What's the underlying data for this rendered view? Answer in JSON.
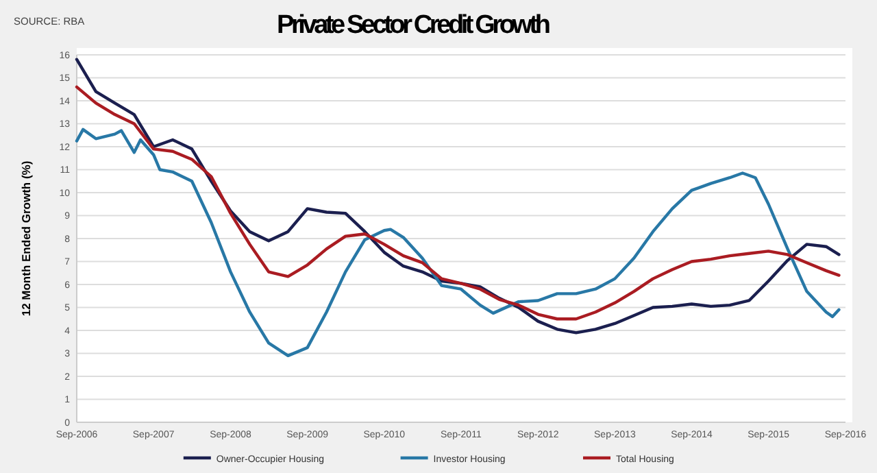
{
  "chart_data": {
    "type": "line",
    "title": "Private Sector Credit Growth",
    "ylabel": "12 Month Ended Growth (%)",
    "annotations": [
      "SOURCE: RBA"
    ],
    "xlim": [
      "2006-09",
      "2016-09"
    ],
    "xticks": [
      {
        "value": "2006-09",
        "label": "Sep-2006"
      },
      {
        "value": "2007-09",
        "label": "Sep-2007"
      },
      {
        "value": "2008-09",
        "label": "Sep-2008"
      },
      {
        "value": "2009-09",
        "label": "Sep-2009"
      },
      {
        "value": "2010-09",
        "label": "Sep-2010"
      },
      {
        "value": "2011-09",
        "label": "Sep-2011"
      },
      {
        "value": "2012-09",
        "label": "Sep-2012"
      },
      {
        "value": "2013-09",
        "label": "Sep-2013"
      },
      {
        "value": "2014-09",
        "label": "Sep-2014"
      },
      {
        "value": "2015-09",
        "label": "Sep-2015"
      },
      {
        "value": "2016-09",
        "label": "Sep-2016"
      }
    ],
    "ylim": [
      0,
      16
    ],
    "yticks": [
      0,
      1,
      2,
      3,
      4,
      5,
      6,
      7,
      8,
      9,
      10,
      11,
      12,
      13,
      14,
      15,
      16
    ],
    "grid": "y",
    "legend": "bottom",
    "marker": "none",
    "line_style": "solid",
    "series": [
      {
        "name": "Owner-Occupier Housing",
        "color": "#1b1f4f",
        "x": [
          "2006-09",
          "2006-12",
          "2007-03",
          "2007-06",
          "2007-09",
          "2007-12",
          "2008-03",
          "2008-06",
          "2008-09",
          "2008-12",
          "2009-03",
          "2009-06",
          "2009-09",
          "2009-12",
          "2010-03",
          "2010-06",
          "2010-09",
          "2010-12",
          "2011-03",
          "2011-06",
          "2011-09",
          "2011-12",
          "2012-03",
          "2012-06",
          "2012-09",
          "2012-12",
          "2013-03",
          "2013-06",
          "2013-09",
          "2013-12",
          "2014-03",
          "2014-06",
          "2014-09",
          "2014-12",
          "2015-03",
          "2015-06",
          "2015-09",
          "2015-12",
          "2016-03",
          "2016-06",
          "2016-08"
        ],
        "values": [
          15.8,
          14.4,
          13.9,
          13.4,
          12.0,
          12.3,
          11.9,
          10.5,
          9.2,
          8.3,
          7.9,
          8.3,
          9.3,
          9.15,
          9.1,
          8.3,
          7.4,
          6.8,
          6.55,
          6.15,
          6.05,
          5.9,
          5.4,
          5.0,
          4.4,
          4.05,
          3.9,
          4.05,
          4.3,
          4.65,
          5.0,
          5.05,
          5.15,
          5.05,
          5.1,
          5.3,
          6.15,
          7.05,
          7.75,
          7.65,
          7.3
        ]
      },
      {
        "name": "Investor Housing",
        "color": "#2878a6",
        "x": [
          "2006-09",
          "2006-10",
          "2006-12",
          "2007-03",
          "2007-04",
          "2007-06",
          "2007-07",
          "2007-09",
          "2007-10",
          "2007-12",
          "2008-03",
          "2008-06",
          "2008-09",
          "2008-12",
          "2009-03",
          "2009-06",
          "2009-09",
          "2009-12",
          "2010-03",
          "2010-06",
          "2010-09",
          "2010-10",
          "2010-12",
          "2011-03",
          "2011-06",
          "2011-09",
          "2011-12",
          "2012-02",
          "2012-06",
          "2012-09",
          "2012-12",
          "2013-03",
          "2013-06",
          "2013-09",
          "2013-12",
          "2014-03",
          "2014-06",
          "2014-09",
          "2014-12",
          "2015-03",
          "2015-05",
          "2015-07",
          "2015-09",
          "2015-12",
          "2016-03",
          "2016-06",
          "2016-07",
          "2016-08"
        ],
        "values": [
          12.25,
          12.75,
          12.35,
          12.55,
          12.7,
          11.75,
          12.3,
          11.65,
          11.0,
          10.9,
          10.5,
          8.7,
          6.55,
          4.8,
          3.45,
          2.9,
          3.25,
          4.8,
          6.55,
          7.95,
          8.35,
          8.4,
          8.05,
          7.15,
          5.95,
          5.8,
          5.1,
          4.75,
          5.25,
          5.3,
          5.6,
          5.6,
          5.8,
          6.25,
          7.15,
          8.3,
          9.3,
          10.1,
          10.4,
          10.65,
          10.85,
          10.65,
          9.5,
          7.55,
          5.7,
          4.8,
          4.6,
          4.9
        ]
      },
      {
        "name": "Total Housing",
        "color": "#aa1c22",
        "x": [
          "2006-09",
          "2006-12",
          "2007-03",
          "2007-06",
          "2007-09",
          "2007-12",
          "2008-03",
          "2008-06",
          "2008-09",
          "2008-12",
          "2009-03",
          "2009-06",
          "2009-09",
          "2009-12",
          "2010-03",
          "2010-06",
          "2010-09",
          "2010-12",
          "2011-03",
          "2011-06",
          "2011-09",
          "2011-12",
          "2012-03",
          "2012-06",
          "2012-09",
          "2012-12",
          "2013-03",
          "2013-06",
          "2013-09",
          "2013-12",
          "2014-03",
          "2014-06",
          "2014-09",
          "2014-12",
          "2015-03",
          "2015-06",
          "2015-09",
          "2015-12",
          "2016-03",
          "2016-06",
          "2016-08"
        ],
        "values": [
          14.6,
          13.9,
          13.4,
          13.0,
          11.9,
          11.8,
          11.45,
          10.7,
          9.1,
          7.75,
          6.55,
          6.35,
          6.85,
          7.55,
          8.1,
          8.2,
          7.75,
          7.25,
          6.95,
          6.25,
          6.05,
          5.8,
          5.35,
          5.1,
          4.7,
          4.5,
          4.5,
          4.8,
          5.2,
          5.7,
          6.25,
          6.65,
          7.0,
          7.1,
          7.25,
          7.35,
          7.45,
          7.3,
          6.95,
          6.6,
          6.4
        ]
      }
    ]
  }
}
